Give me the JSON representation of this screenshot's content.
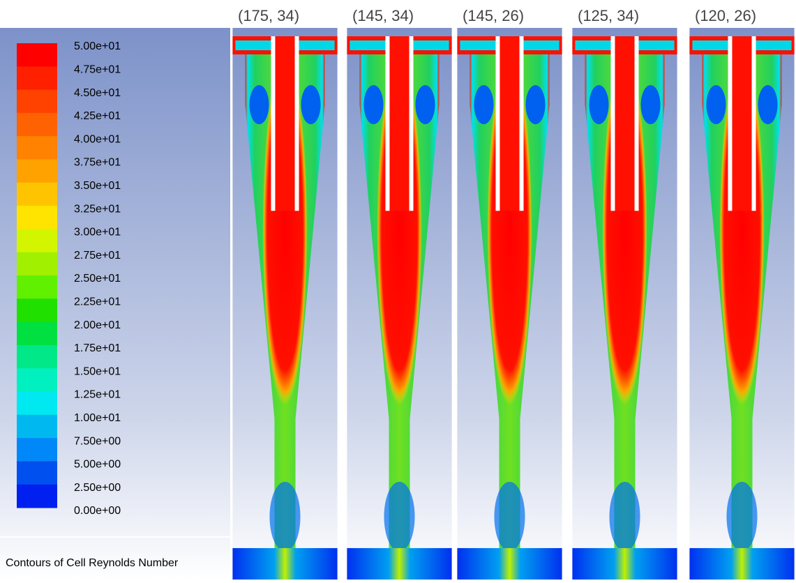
{
  "legend": {
    "labels": [
      "5.00e+01",
      "4.75e+01",
      "4.50e+01",
      "4.25e+01",
      "4.00e+01",
      "3.75e+01",
      "3.50e+01",
      "3.25e+01",
      "3.00e+01",
      "2.75e+01",
      "2.50e+01",
      "2.25e+01",
      "2.00e+01",
      "1.75e+01",
      "1.50e+01",
      "1.25e+01",
      "1.00e+01",
      "7.50e+00",
      "5.00e+00",
      "2.50e+00",
      "0.00e+00"
    ],
    "colors": [
      "#ff0000",
      "#ff2000",
      "#ff4200",
      "#ff6200",
      "#ff8200",
      "#ffa200",
      "#ffc400",
      "#ffe400",
      "#d4f500",
      "#a0f000",
      "#60f000",
      "#20e000",
      "#00e040",
      "#00e888",
      "#00f0c0",
      "#00e8f0",
      "#00b8f0",
      "#0088f8",
      "#0050f0",
      "#0020f0"
    ],
    "footer": "Contours of Cell Reynolds Number"
  },
  "panels": [
    {
      "title": "(175, 34)"
    },
    {
      "title": "(145, 34)"
    },
    {
      "title": "(145, 26)"
    },
    {
      "title": "(125, 34)"
    },
    {
      "title": "(120, 26)"
    }
  ]
}
